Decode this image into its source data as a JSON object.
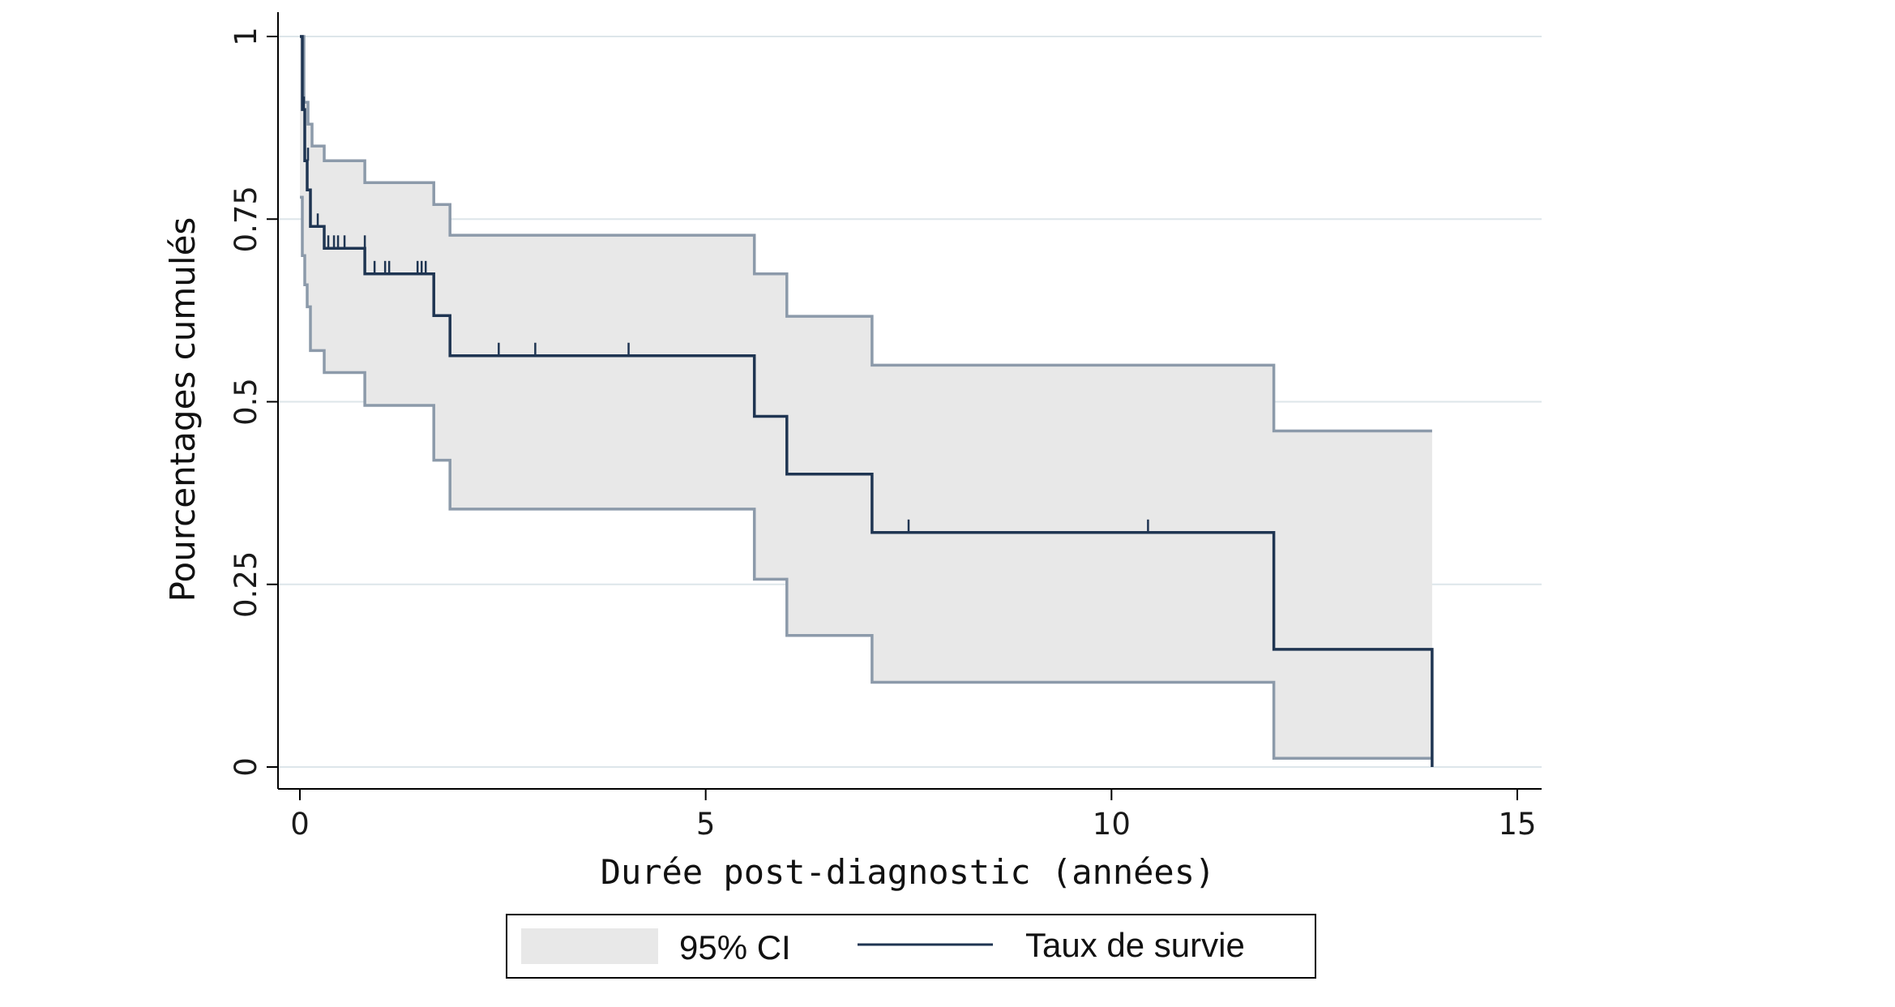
{
  "chart_data": {
    "type": "line",
    "subtype": "kaplan-meier step survival curve with 95% CI band",
    "xlabel": "Durée post-diagnostic (années)",
    "ylabel": "Pourcentages cumulés",
    "xlim": [
      0,
      15
    ],
    "ylim": [
      0,
      1
    ],
    "x_ticks": [
      0,
      5,
      10,
      15
    ],
    "y_ticks": [
      0,
      0.25,
      0.5,
      0.75,
      1
    ],
    "x_tick_labels": [
      "0",
      "5",
      "10",
      "15"
    ],
    "y_tick_labels": [
      "0",
      "0.25",
      "0.5",
      "0.75",
      "1"
    ],
    "grid": "horizontal",
    "legend_position": "bottom",
    "colors": {
      "survival_line": "#1f3552",
      "ci_band_fill": "#e8e8e8",
      "ci_band_edge": "#8c9aaa",
      "grid": "#dde6ea",
      "axis": "#000000"
    },
    "legend": [
      {
        "label": "95% CI",
        "kind": "band"
      },
      {
        "label": "Taux de survie",
        "kind": "line"
      }
    ],
    "series": [
      {
        "name": "Taux de survie",
        "kind": "step",
        "x": [
          0,
          0.03,
          0.06,
          0.09,
          0.13,
          0.3,
          0.8,
          1.65,
          1.85,
          5.6,
          6.0,
          7.05,
          12.0,
          13.95
        ],
        "y": [
          1.0,
          0.9,
          0.83,
          0.79,
          0.74,
          0.71,
          0.675,
          0.618,
          0.563,
          0.48,
          0.401,
          0.321,
          0.161,
          0.0
        ]
      },
      {
        "name": "95% CI upper",
        "kind": "step",
        "x": [
          0,
          0.05,
          0.1,
          0.15,
          0.3,
          0.8,
          1.65,
          1.85,
          5.6,
          6.0,
          7.05,
          12.0,
          13.95
        ],
        "y": [
          1.0,
          0.91,
          0.88,
          0.85,
          0.83,
          0.8,
          0.77,
          0.728,
          0.675,
          0.617,
          0.55,
          0.46,
          0.46
        ]
      },
      {
        "name": "95% CI lower",
        "kind": "step",
        "x": [
          0,
          0.03,
          0.06,
          0.09,
          0.13,
          0.3,
          0.8,
          1.65,
          1.85,
          5.6,
          6.0,
          7.05,
          12.0,
          13.95
        ],
        "y": [
          0.78,
          0.7,
          0.66,
          0.63,
          0.57,
          0.54,
          0.495,
          0.42,
          0.353,
          0.257,
          0.18,
          0.116,
          0.012,
          0.012
        ]
      }
    ],
    "censored_points": {
      "x": [
        0.05,
        0.1,
        0.22,
        0.35,
        0.42,
        0.47,
        0.55,
        0.8,
        0.92,
        1.05,
        1.1,
        1.45,
        1.5,
        1.55,
        2.45,
        2.9,
        4.05,
        7.5,
        10.45
      ],
      "y": [
        0.9,
        0.83,
        0.74,
        0.71,
        0.71,
        0.71,
        0.71,
        0.71,
        0.675,
        0.675,
        0.675,
        0.675,
        0.675,
        0.675,
        0.563,
        0.563,
        0.563,
        0.321,
        0.321
      ]
    }
  }
}
